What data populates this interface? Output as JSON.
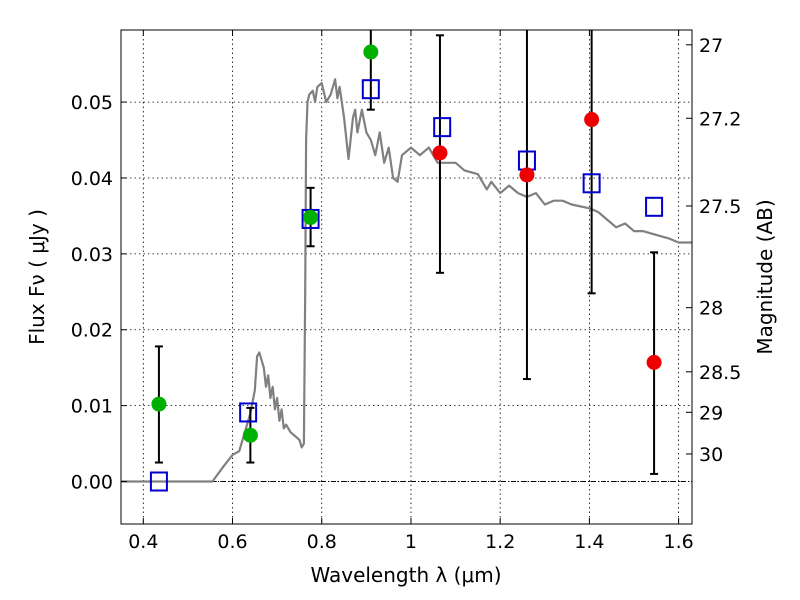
{
  "chart_data": {
    "type": "scatter",
    "xlabel": "Wavelength  λ (μm)",
    "ylabel": "Flux  Fν ( μJy )",
    "ylabel_right": "Magnitude (AB)",
    "xlim": [
      0.35,
      1.63
    ],
    "ylim": [
      -0.0056,
      0.0595
    ],
    "grid": true,
    "x_ticks": [
      {
        "value": 0.4,
        "label": "0.4"
      },
      {
        "value": 0.6,
        "label": "0.6"
      },
      {
        "value": 0.8,
        "label": "0.8"
      },
      {
        "value": 1.0,
        "label": "1"
      },
      {
        "value": 1.2,
        "label": "1.2"
      },
      {
        "value": 1.4,
        "label": "1.4"
      },
      {
        "value": 1.6,
        "label": "1.6"
      }
    ],
    "y_ticks": [
      {
        "value": 0.0,
        "label": "0.00"
      },
      {
        "value": 0.01,
        "label": "0.01"
      },
      {
        "value": 0.02,
        "label": "0.02"
      },
      {
        "value": 0.03,
        "label": "0.03"
      },
      {
        "value": 0.04,
        "label": "0.04"
      },
      {
        "value": 0.05,
        "label": "0.05"
      }
    ],
    "magnitude_ticks": [
      {
        "mag": 27,
        "label": "27"
      },
      {
        "mag": 27.2,
        "label": "27.2"
      },
      {
        "mag": 27.5,
        "label": "27.5"
      },
      {
        "mag": 28,
        "label": "28"
      },
      {
        "mag": 28.5,
        "label": "28.5"
      },
      {
        "mag": 29,
        "label": "29"
      },
      {
        "mag": 30,
        "label": "30"
      }
    ],
    "colors": {
      "model": "#808080",
      "detected": "#00b000",
      "upper": "#ee0000",
      "model_box": "#0000cc",
      "errorbar": "#000000",
      "zero_line": "#000000"
    },
    "series": [
      {
        "name": "model SED",
        "kind": "line",
        "x": [
          0.35,
          0.4,
          0.5,
          0.555,
          0.58,
          0.6,
          0.615,
          0.625,
          0.63,
          0.64,
          0.65,
          0.655,
          0.66,
          0.67,
          0.675,
          0.68,
          0.685,
          0.69,
          0.695,
          0.7,
          0.705,
          0.71,
          0.715,
          0.72,
          0.73,
          0.74,
          0.75,
          0.755,
          0.76,
          0.763,
          0.765,
          0.768,
          0.772,
          0.78,
          0.785,
          0.79,
          0.8,
          0.81,
          0.82,
          0.83,
          0.835,
          0.84,
          0.85,
          0.86,
          0.87,
          0.875,
          0.88,
          0.89,
          0.895,
          0.9,
          0.91,
          0.92,
          0.93,
          0.94,
          0.95,
          0.96,
          0.97,
          0.98,
          1.0,
          1.02,
          1.04,
          1.06,
          1.08,
          1.1,
          1.12,
          1.15,
          1.17,
          1.18,
          1.2,
          1.22,
          1.24,
          1.26,
          1.28,
          1.3,
          1.32,
          1.34,
          1.36,
          1.4,
          1.42,
          1.45,
          1.46,
          1.48,
          1.5,
          1.52,
          1.55,
          1.58,
          1.6,
          1.63
        ],
        "y": [
          0.0,
          0.0,
          0.0,
          0.0,
          0.002,
          0.0035,
          0.004,
          0.006,
          0.007,
          0.009,
          0.012,
          0.0165,
          0.017,
          0.015,
          0.0125,
          0.014,
          0.011,
          0.0125,
          0.0095,
          0.011,
          0.008,
          0.0095,
          0.007,
          0.0075,
          0.0065,
          0.006,
          0.0055,
          0.0045,
          0.005,
          0.025,
          0.045,
          0.05,
          0.051,
          0.0515,
          0.05,
          0.052,
          0.0525,
          0.05,
          0.051,
          0.053,
          0.0505,
          0.052,
          0.048,
          0.0425,
          0.048,
          0.049,
          0.046,
          0.049,
          0.0475,
          0.046,
          0.045,
          0.043,
          0.046,
          0.042,
          0.044,
          0.04,
          0.0395,
          0.043,
          0.044,
          0.043,
          0.044,
          0.042,
          0.042,
          0.042,
          0.041,
          0.0405,
          0.0385,
          0.0395,
          0.038,
          0.039,
          0.038,
          0.0375,
          0.038,
          0.0365,
          0.037,
          0.037,
          0.0365,
          0.036,
          0.0355,
          0.034,
          0.0335,
          0.034,
          0.033,
          0.033,
          0.0325,
          0.032,
          0.0315,
          0.0315
        ]
      },
      {
        "name": "model magnitudes",
        "kind": "open-square",
        "x": [
          0.435,
          0.635,
          0.775,
          0.91,
          1.07,
          1.26,
          1.405,
          1.545
        ],
        "y": [
          0.0,
          0.0091,
          0.0346,
          0.0517,
          0.0467,
          0.0423,
          0.0393,
          0.0362
        ]
      },
      {
        "name": "detections",
        "kind": "filled-circle",
        "x": [
          0.435,
          0.64,
          0.775,
          0.91
        ],
        "y": [
          0.0102,
          0.0061,
          0.0348,
          0.0566
        ],
        "err_low": [
          0.0025,
          0.0025,
          0.031,
          0.049
        ],
        "err_high": [
          0.0178,
          0.0097,
          0.0387,
          0.066
        ]
      },
      {
        "name": "upper limits",
        "kind": "filled-circle",
        "x": [
          1.065,
          1.26,
          1.405,
          1.545
        ],
        "y": [
          0.0433,
          0.0404,
          0.0477,
          0.0157
        ],
        "err_low": [
          0.0275,
          0.0135,
          0.0248,
          0.001
        ],
        "err_high": [
          0.0588,
          0.066,
          0.066,
          0.0302
        ]
      }
    ]
  }
}
